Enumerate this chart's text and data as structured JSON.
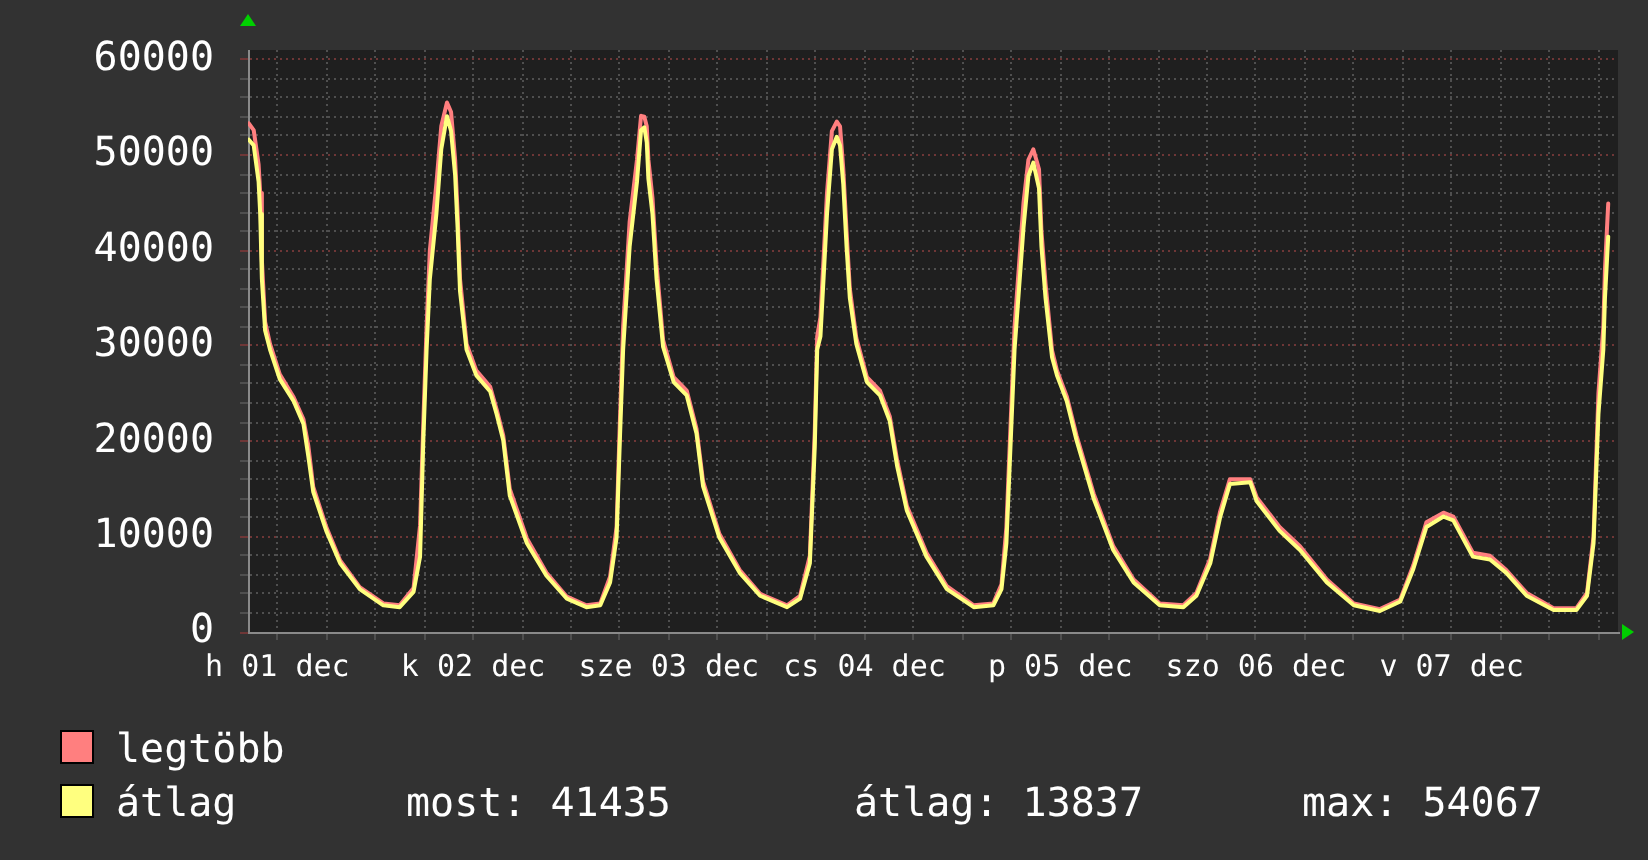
{
  "chart_data": {
    "type": "line",
    "x": [
      "--12-01T08:30",
      "--12-01T09:06",
      "--12-01T09:42",
      "--12-01T09:54",
      "--12-01T10:06",
      "--12-01T10:30",
      "--12-01T11:06",
      "--12-01T12:18",
      "--12-01T14:00",
      "--12-01T15:12",
      "--12-01T15:48",
      "--12-01T16:24",
      "--12-01T18:00",
      "--12-01T19:42",
      "--12-01T22:06",
      "--12-02T01:00",
      "--12-02T03:00",
      "--12-02T04:42",
      "--12-02T05:30",
      "--12-02T05:54",
      "--12-02T06:18",
      "--12-02T06:42",
      "--12-02T07:30",
      "--12-02T08:06",
      "--12-02T08:48",
      "--12-02T09:18",
      "--12-02T09:48",
      "--12-02T10:06",
      "--12-02T10:24",
      "--12-02T11:12",
      "--12-02T12:24",
      "--12-02T14:06",
      "--12-02T14:54",
      "--12-02T15:42",
      "--12-02T16:30",
      "--12-02T18:36",
      "--12-02T21:00",
      "--12-02T23:30",
      "--12-03T01:54",
      "--12-03T03:36",
      "--12-03T04:48",
      "--12-03T05:36",
      "--12-03T06:00",
      "--12-03T06:24",
      "--12-03T07:12",
      "--12-03T08:06",
      "--12-03T08:36",
      "--12-03T09:00",
      "--12-03T09:18",
      "--12-03T09:30",
      "--12-03T10:00",
      "--12-03T10:30",
      "--12-03T11:18",
      "--12-03T12:36",
      "--12-03T14:12",
      "--12-03T15:24",
      "--12-03T16:12",
      "--12-03T18:12",
      "--12-03T20:42",
      "--12-03T23:12",
      "--12-04T02:30",
      "--12-04T04:06",
      "--12-04T05:18",
      "--12-04T05:54",
      "--12-04T06:12",
      "--12-04T06:36",
      "--12-04T07:24",
      "--12-04T08:00",
      "--12-04T08:36",
      "--12-04T09:00",
      "--12-04T09:24",
      "--12-04T09:48",
      "--12-04T10:12",
      "--12-04T11:00",
      "--12-04T12:18",
      "--12-04T13:54",
      "--12-04T15:06",
      "--12-04T16:00",
      "--12-04T17:12",
      "--12-04T19:36",
      "--12-04T22:06",
      "--12-05T01:24",
      "--12-05T03:48",
      "--12-05T04:48",
      "--12-05T05:24",
      "--12-05T05:54",
      "--12-05T06:24",
      "--12-05T07:30",
      "--12-05T08:06",
      "--12-05T08:42",
      "--12-05T09:24",
      "--12-05T09:42",
      "--12-05T10:12",
      "--12-05T11:00",
      "--12-05T11:36",
      "--12-05T12:48",
      "--12-05T14:00",
      "--12-05T16:06",
      "--12-05T18:30",
      "--12-05T21:00",
      "--12-06T00:12",
      "--12-06T03:06",
      "--12-06T04:42",
      "--12-06T06:24",
      "--12-06T07:36",
      "--12-06T08:48",
      "--12-06T11:18",
      "--12-06T12:06",
      "--12-06T14:54",
      "--12-06T17:24",
      "--12-06T20:42",
      "--12-07T00:00",
      "--12-07T03:12",
      "--12-07T05:42",
      "--12-07T07:18",
      "--12-07T08:54",
      "--12-07T11:00",
      "--12-07T12:12",
      "--12-07T14:36",
      "--12-07T16:42",
      "--12-07T18:42",
      "--12-07T21:12",
      "--12-08T00:30",
      "--12-08T03:18",
      "--12-08T04:36",
      "--12-08T05:24",
      "--12-08T06:00",
      "--12-08T06:36",
      "--12-08T06:48",
      "--12-08T07:12"
    ],
    "series": [
      {
        "name": "legtöbb",
        "color": "#ff7f7f",
        "values": [
          53300,
          52600,
          49000,
          46000,
          39000,
          32500,
          30200,
          27000,
          24600,
          22300,
          19500,
          15200,
          11000,
          7500,
          4700,
          3000,
          2800,
          4600,
          11200,
          22000,
          32000,
          40000,
          47000,
          53000,
          55500,
          54500,
          49500,
          44000,
          37000,
          30200,
          27400,
          25700,
          23300,
          20600,
          15000,
          9800,
          6200,
          3700,
          2800,
          3000,
          5800,
          11000,
          22000,
          32000,
          43000,
          49500,
          54100,
          54000,
          53000,
          49500,
          45500,
          38500,
          30600,
          26700,
          25300,
          21300,
          15800,
          10300,
          6500,
          4000,
          2800,
          3800,
          8000,
          21000,
          31000,
          33000,
          46000,
          52500,
          53500,
          53000,
          48500,
          42000,
          36000,
          30800,
          26700,
          25300,
          22600,
          18000,
          13200,
          8300,
          4800,
          2800,
          3000,
          5000,
          11000,
          21500,
          32000,
          45000,
          49500,
          50600,
          48500,
          42000,
          36500,
          29500,
          27400,
          24700,
          20600,
          14500,
          9000,
          5500,
          3000,
          2800,
          4100,
          7700,
          12600,
          16000,
          16000,
          14100,
          11000,
          9000,
          5500,
          3000,
          2400,
          3400,
          7000,
          11500,
          12500,
          12100,
          8300,
          8000,
          6500,
          4100,
          2500,
          2500,
          4100,
          10000,
          25000,
          32000,
          38000,
          44900
        ]
      },
      {
        "name": "átlag",
        "color": "#ffff7f",
        "values": [
          51600,
          51000,
          47200,
          43800,
          37000,
          31600,
          29600,
          26500,
          24200,
          21800,
          18400,
          14700,
          10600,
          7200,
          4500,
          2800,
          2600,
          4200,
          7900,
          20100,
          29600,
          37000,
          43800,
          50600,
          54067,
          52500,
          47900,
          42400,
          35700,
          29600,
          26900,
          25200,
          22800,
          20100,
          14300,
          9300,
          5900,
          3500,
          2600,
          2800,
          5200,
          9900,
          20100,
          29600,
          40400,
          47200,
          52600,
          52900,
          51300,
          47500,
          43800,
          37000,
          29900,
          26200,
          24800,
          20800,
          15300,
          9900,
          6200,
          3800,
          2600,
          3500,
          7200,
          19400,
          29600,
          31000,
          43800,
          50600,
          51900,
          51000,
          46900,
          40400,
          35000,
          30200,
          26200,
          24800,
          22100,
          17400,
          12700,
          7900,
          4500,
          2600,
          2800,
          4500,
          9300,
          19400,
          29600,
          42400,
          47800,
          49200,
          46500,
          40400,
          35000,
          28800,
          26900,
          24200,
          20100,
          14000,
          8600,
          5200,
          2800,
          2600,
          3800,
          7200,
          12000,
          15500,
          15700,
          13700,
          10600,
          8600,
          5200,
          2800,
          2200,
          3200,
          6600,
          11000,
          12100,
          11700,
          7900,
          7600,
          6200,
          3800,
          2300,
          2300,
          3800,
          9300,
          22800,
          29600,
          35000,
          41435
        ]
      }
    ],
    "xlim": [
      "--12-01T08:24",
      "--12-08T08:24"
    ],
    "xticks": [
      {
        "value": "--12-01T12:00",
        "label": "h 01 dec"
      },
      {
        "value": "--12-01T18:00",
        "label": null
      },
      {
        "value": "--12-02T00:00",
        "label": null
      },
      {
        "value": "--12-02T06:00",
        "label": null
      },
      {
        "value": "--12-02T12:00",
        "label": "k 02 dec"
      },
      {
        "value": "--12-02T18:00",
        "label": null
      },
      {
        "value": "--12-03T00:00",
        "label": null
      },
      {
        "value": "--12-03T06:00",
        "label": null
      },
      {
        "value": "--12-03T12:00",
        "label": "sze 03 dec"
      },
      {
        "value": "--12-03T18:00",
        "label": null
      },
      {
        "value": "--12-04T00:00",
        "label": null
      },
      {
        "value": "--12-04T06:00",
        "label": null
      },
      {
        "value": "--12-04T12:00",
        "label": "cs 04 dec"
      },
      {
        "value": "--12-04T18:00",
        "label": null
      },
      {
        "value": "--12-05T00:00",
        "label": null
      },
      {
        "value": "--12-05T06:00",
        "label": null
      },
      {
        "value": "--12-05T12:00",
        "label": "p 05 dec"
      },
      {
        "value": "--12-05T18:00",
        "label": null
      },
      {
        "value": "--12-06T00:00",
        "label": null
      },
      {
        "value": "--12-06T06:00",
        "label": null
      },
      {
        "value": "--12-06T12:00",
        "label": "szo 06 dec"
      },
      {
        "value": "--12-06T18:00",
        "label": null
      },
      {
        "value": "--12-07T00:00",
        "label": null
      },
      {
        "value": "--12-07T06:00",
        "label": null
      },
      {
        "value": "--12-07T12:00",
        "label": "v 07 dec"
      },
      {
        "value": "--12-07T18:00",
        "label": null
      },
      {
        "value": "--12-08T00:00",
        "label": null
      },
      {
        "value": "--12-08T06:00",
        "label": null
      }
    ],
    "ylim": [
      0,
      61000
    ],
    "yticks": [
      0,
      {
        "value": 2000,
        "label": null
      },
      {
        "value": 4000,
        "label": null
      },
      {
        "value": 6000,
        "label": null
      },
      {
        "value": 8000,
        "label": null
      },
      10000,
      {
        "value": 12000,
        "label": null
      },
      {
        "value": 14000,
        "label": null
      },
      {
        "value": 16000,
        "label": null
      },
      {
        "value": 18000,
        "label": null
      },
      20000,
      {
        "value": 22000,
        "label": null
      },
      {
        "value": 24000,
        "label": null
      },
      {
        "value": 26000,
        "label": null
      },
      {
        "value": 28000,
        "label": null
      },
      30000,
      {
        "value": 32000,
        "label": null
      },
      {
        "value": 34000,
        "label": null
      },
      {
        "value": 36000,
        "label": null
      },
      {
        "value": 38000,
        "label": null
      },
      40000,
      {
        "value": 42000,
        "label": null
      },
      {
        "value": 44000,
        "label": null
      },
      {
        "value": 46000,
        "label": null
      },
      {
        "value": 48000,
        "label": null
      },
      50000,
      {
        "value": 52000,
        "label": null
      },
      {
        "value": 54000,
        "label": null
      },
      {
        "value": 56000,
        "label": null
      },
      {
        "value": 58000,
        "label": null
      },
      60000
    ],
    "grid": true,
    "legend": "bottom left",
    "marker": "none",
    "annotations": [
      "most: 41435",
      "átlag: 13837",
      "max: 54067"
    ]
  }
}
